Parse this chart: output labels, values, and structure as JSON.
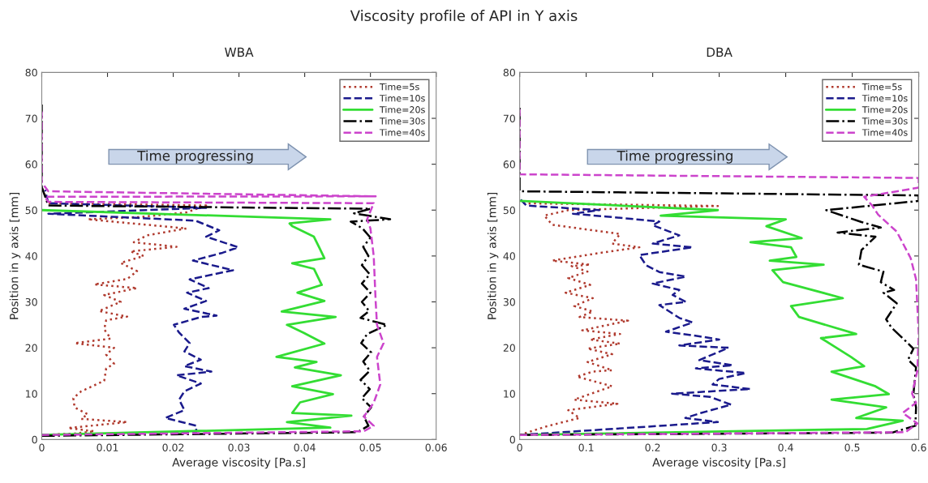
{
  "chart_data": [
    {
      "type": "line",
      "title": "WBA",
      "xlabel": "Average viscosity [Pa.s]",
      "ylabel": "Position in y axis [mm]",
      "annotations": [
        "Viscosity profile of API in Y axis",
        "Time progressing"
      ],
      "xlim": [
        0,
        0.06
      ],
      "xticks": [
        0,
        0.01,
        0.02,
        0.03,
        0.04,
        0.05,
        0.06
      ],
      "ylim": [
        0,
        80
      ],
      "yticks": [
        0,
        10,
        20,
        30,
        40,
        50,
        60,
        70,
        80
      ],
      "grid": false,
      "legend": "top right",
      "marker": "none",
      "series": [
        {
          "name": "Time=5s",
          "color": "#b03a2e",
          "line_style": "dotted",
          "x": [
            0,
            0.005,
            0.008,
            0.004,
            0.013,
            0.006,
            0.007,
            0.005,
            0.0048,
            0.006,
            0.0095,
            0.0098,
            0.011,
            0.0098,
            0.011,
            0.005,
            0.0105,
            0.0095,
            0.0098,
            0.013,
            0.0087,
            0.012,
            0.0095,
            0.0145,
            0.008,
            0.013,
            0.0145,
            0.012,
            0.0155,
            0.0135,
            0.0205,
            0.014,
            0.016,
            0.022,
            0.007,
            0.015,
            0.022,
            0.025,
            0.001,
            0
          ],
          "values": [
            1,
            1.3,
            1.8,
            2.5,
            3.8,
            4.5,
            5.5,
            7,
            9,
            10.5,
            12.8,
            15.5,
            16.5,
            18.5,
            20,
            21,
            22,
            24,
            26,
            26.8,
            28,
            30,
            31.5,
            33,
            33.8,
            35,
            36.7,
            38.5,
            40,
            41,
            42,
            43,
            44.5,
            46,
            48,
            48.5,
            49.5,
            51,
            51.5,
            55
          ]
        },
        {
          "name": "Time=10s",
          "color": "#1a1a8c",
          "line_style": "dashed",
          "x": [
            0,
            0.0235,
            0.0235,
            0.0188,
            0.0217,
            0.0209,
            0.0217,
            0.0242,
            0.0205,
            0.0258,
            0.0217,
            0.0242,
            0.0217,
            0.0225,
            0.0209,
            0.0201,
            0.0242,
            0.0266,
            0.0217,
            0.025,
            0.0221,
            0.0254,
            0.0225,
            0.0291,
            0.023,
            0.0275,
            0.0299,
            0.025,
            0.027,
            0.0234,
            0.007,
            0.001,
            0.025,
            0.001,
            0.0005
          ],
          "values": [
            1,
            1.6,
            3,
            4.7,
            6.4,
            8.7,
            10.5,
            12.2,
            14,
            14.8,
            16,
            17.4,
            19.2,
            21,
            23.3,
            25,
            26.7,
            27,
            28.5,
            30.2,
            32,
            33,
            34.9,
            36.9,
            39,
            40.7,
            41.9,
            44.2,
            45.6,
            47.7,
            48.8,
            49.2,
            50.5,
            51.5,
            54.4
          ]
        },
        {
          "name": "Time=20s",
          "color": "#33dd33",
          "line_style": "solid",
          "x": [
            0,
            0.0439,
            0.0373,
            0.0471,
            0.0381,
            0.0393,
            0.0443,
            0.0381,
            0.0455,
            0.0385,
            0.0418,
            0.0357,
            0.043,
            0.0398,
            0.0373,
            0.0447,
            0.0365,
            0.043,
            0.0389,
            0.0426,
            0.0414,
            0.0381,
            0.043,
            0.0422,
            0.0414,
            0.0381,
            0.0377,
            0.0439,
            0
          ],
          "values": [
            1,
            2.6,
            3.8,
            5.2,
            5.8,
            8.1,
            9.9,
            11.6,
            14,
            15.7,
            16.9,
            18,
            20.9,
            23.3,
            25,
            26.7,
            27.9,
            30.2,
            32,
            33.7,
            37.2,
            38.4,
            39.5,
            41.9,
            44.2,
            46.5,
            47.1,
            48,
            50
          ]
        },
        {
          "name": "Time=30s",
          "color": "#000000",
          "line_style": "dashdot",
          "x": [
            0,
            0.048,
            0.0497,
            0.049,
            0.0501,
            0.0487,
            0.0499,
            0.0485,
            0.0499,
            0.0489,
            0.0501,
            0.0486,
            0.0495,
            0.0525,
            0.0485,
            0.0498,
            0.0487,
            0.05,
            0.0487,
            0.0499,
            0.0487,
            0.0497,
            0.0489,
            0.05,
            0.0488,
            0.047,
            0.053,
            0.0475,
            0.05,
            0.001,
            0,
            0
          ],
          "values": [
            0.8,
            1.6,
            3,
            5,
            7,
            9,
            11,
            13,
            15,
            17,
            19,
            21,
            23,
            25,
            26.5,
            28,
            30,
            32,
            34,
            36,
            38,
            40,
            42,
            44,
            46,
            47.5,
            48,
            49.3,
            50.3,
            51,
            55,
            73
          ]
        },
        {
          "name": "Time=40s",
          "color": "#cc44cc",
          "line_style": "dashed",
          "x": [
            0,
            0.049,
            0.0505,
            0.049,
            0.0505,
            0.0515,
            0.051,
            0.052,
            0.051,
            0.0508,
            0.0505,
            0.05,
            0.0495,
            0.0505,
            0.001,
            0.0005,
            0.0508,
            0.001,
            0,
            0
          ],
          "values": [
            1,
            1.8,
            3,
            5,
            8,
            12,
            18,
            21,
            25,
            30,
            40,
            46,
            48,
            51.5,
            51.8,
            52.9,
            53,
            54.1,
            56,
            72
          ]
        }
      ]
    },
    {
      "type": "line",
      "title": "DBA",
      "xlabel": "Average viscosity [Pa.s]",
      "ylabel": "Position in y axis [mm]",
      "annotations": [
        "Time progressing"
      ],
      "xlim": [
        0,
        0.6
      ],
      "xticks": [
        0,
        0.1,
        0.2,
        0.3,
        0.4,
        0.5,
        0.6
      ],
      "ylim": [
        0,
        80
      ],
      "yticks": [
        0,
        10,
        20,
        30,
        40,
        50,
        60,
        70,
        80
      ],
      "grid": false,
      "legend": "top right",
      "marker": "none",
      "series": [
        {
          "name": "Time=5s",
          "color": "#b03a2e",
          "line_style": "dotted",
          "x": [
            0,
            0.041,
            0.09,
            0.073,
            0.147,
            0.082,
            0.139,
            0.086,
            0.11,
            0.139,
            0.102,
            0.139,
            0.102,
            0.151,
            0.106,
            0.151,
            0.094,
            0.163,
            0.09,
            0.11,
            0.082,
            0.11,
            0.069,
            0.106,
            0.073,
            0.102,
            0.078,
            0.106,
            0.049,
            0.122,
            0.18,
            0.139,
            0.151,
            0.11,
            0.049,
            0.037,
            0.073,
            0.298,
            0
          ],
          "values": [
            1,
            2.9,
            4.7,
            6.4,
            7.8,
            8.7,
            11.6,
            13.7,
            14.8,
            15.1,
            16.9,
            18.6,
            19.8,
            20.9,
            21.8,
            23,
            23.8,
            25.9,
            26.7,
            27.9,
            29.1,
            30.8,
            32,
            33.7,
            35.2,
            36.6,
            37.8,
            38.1,
            39,
            40.7,
            41.9,
            42.7,
            44.8,
            45.6,
            46.8,
            48.8,
            50,
            50.9,
            51.5
          ]
        },
        {
          "name": "Time=10s",
          "color": "#1a1a8c",
          "line_style": "dashed",
          "x": [
            0,
            0.298,
            0.249,
            0.273,
            0.318,
            0.286,
            0.229,
            0.347,
            0.29,
            0.3,
            0.34,
            0.265,
            0.32,
            0.27,
            0.314,
            0.24,
            0.3,
            0.27,
            0.22,
            0.26,
            0.24,
            0.21,
            0.25,
            0.23,
            0.24,
            0.2,
            0.25,
            0.21,
            0.19,
            0.18,
            0.26,
            0.2,
            0.24,
            0.2,
            0.21,
            0.13,
            0.08,
            0.12,
            0.01,
            0
          ],
          "values": [
            1,
            3.8,
            4.7,
            5.8,
            7.6,
            9.3,
            10,
            11,
            12,
            13.2,
            14.5,
            15.5,
            16.2,
            17.3,
            20,
            20.5,
            21.8,
            22.5,
            23.5,
            25.5,
            26.5,
            29.3,
            30,
            31.5,
            32.6,
            34,
            35.5,
            36.5,
            38,
            40.2,
            41.9,
            42.7,
            44.5,
            46.7,
            47.5,
            48.6,
            49.2,
            50,
            51,
            52.5
          ]
        },
        {
          "name": "Time=20s",
          "color": "#33dd33",
          "line_style": "solid",
          "x": [
            0,
            0.522,
            0.576,
            0.506,
            0.551,
            0.469,
            0.555,
            0.535,
            0.469,
            0.518,
            0.498,
            0.453,
            0.506,
            0.42,
            0.408,
            0.486,
            0.396,
            0.38,
            0.457,
            0.376,
            0.416,
            0.408,
            0.347,
            0.424,
            0.371,
            0.4,
            0.212,
            0.298,
            0
          ],
          "values": [
            1,
            2.3,
            4.1,
            4.7,
            7,
            8.7,
            9.9,
            11.6,
            14.8,
            16,
            18,
            22.1,
            23,
            26.7,
            29.1,
            30.8,
            34.3,
            36.9,
            38.1,
            39,
            39.8,
            41.9,
            43,
            43.9,
            46.5,
            48,
            48.8,
            50,
            52
          ]
        },
        {
          "name": "Time=30s",
          "color": "#000000",
          "line_style": "dashdot",
          "x": [
            0,
            0.56,
            0.595,
            0.596,
            0.592,
            0.596,
            0.584,
            0.592,
            0.58,
            0.559,
            0.551,
            0.567,
            0.547,
            0.563,
            0.543,
            0.547,
            0.51,
            0.514,
            0.535,
            0.478,
            0.543,
            0.514,
            0.461,
            0.6,
            0.6,
            0,
            0
          ],
          "values": [
            1,
            1.5,
            3,
            7,
            9.9,
            15.7,
            17.4,
            19.8,
            21.5,
            24.4,
            26.2,
            29.7,
            32,
            32.6,
            34.3,
            36.6,
            38.1,
            41.3,
            44.2,
            45.1,
            46.2,
            47.4,
            50,
            52,
            53.2,
            54.1,
            73
          ]
        },
        {
          "name": "Time=40s",
          "color": "#cc44cc",
          "line_style": "dashed",
          "x": [
            0,
            0.58,
            0.598,
            0.576,
            0.596,
            0.59,
            0.598,
            0.6,
            0.596,
            0.588,
            0.567,
            0.539,
            0.53,
            0.518,
            0.6,
            0.6,
            0,
            0
          ],
          "values": [
            1,
            1.6,
            3.5,
            5.8,
            8,
            10,
            15,
            23,
            34.9,
            39.5,
            45.3,
            49,
            51,
            52.9,
            54.9,
            57,
            57.8,
            72
          ]
        }
      ]
    }
  ]
}
